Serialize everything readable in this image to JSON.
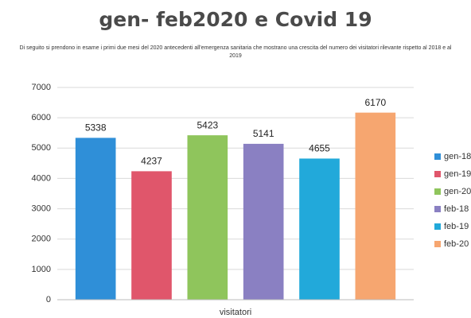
{
  "chart_data": {
    "type": "bar",
    "title": "gen- feb2020 e Covid 19",
    "subtitle": "Di seguito si prendono in esame i primi due mesi del 2020 antecedenti all'emergenza sanitaria che mostrano una crescita del numero dei visitatori rilevante rispetto al 2018 e al 2019",
    "categories": [
      "visitatori"
    ],
    "series": [
      {
        "name": "gen-18",
        "color": "#2f8fd8",
        "values": [
          5338
        ]
      },
      {
        "name": "gen-19",
        "color": "#e0566b",
        "values": [
          4237
        ]
      },
      {
        "name": "gen-20",
        "color": "#8fc55c",
        "values": [
          5423
        ]
      },
      {
        "name": "feb-18",
        "color": "#8a80c2",
        "values": [
          5141
        ]
      },
      {
        "name": "feb-19",
        "color": "#22a9da",
        "values": [
          4655
        ]
      },
      {
        "name": "feb-20",
        "color": "#f6a670",
        "values": [
          6170
        ]
      }
    ],
    "ylim": [
      0,
      7000
    ],
    "yticks": [
      0,
      1000,
      2000,
      3000,
      4000,
      5000,
      6000,
      7000
    ],
    "grid": true,
    "legend": "right"
  }
}
